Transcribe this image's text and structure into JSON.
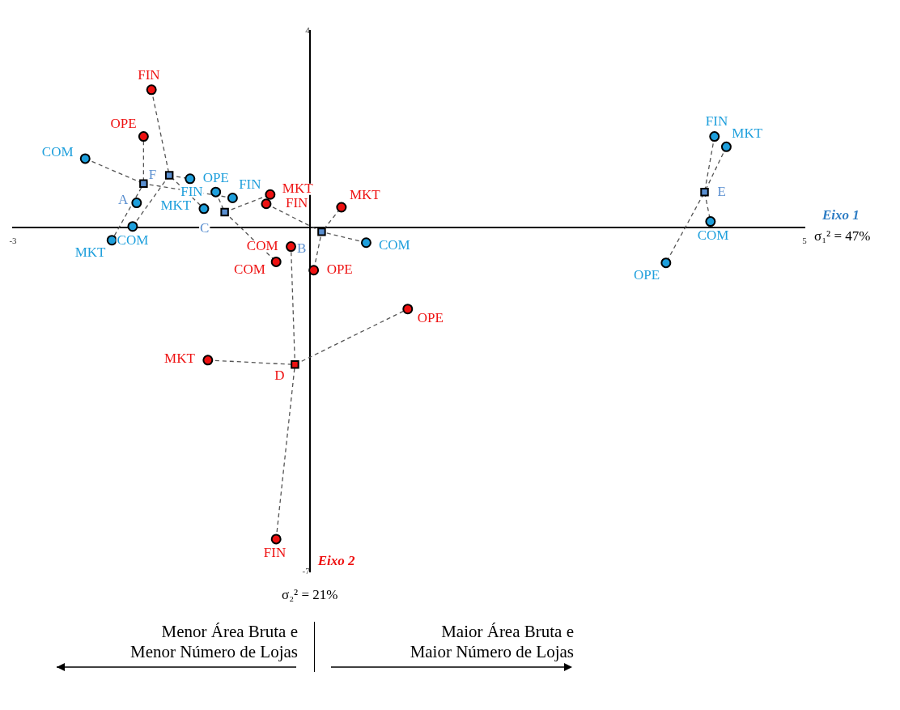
{
  "chart_data": {
    "type": "scatter",
    "xlabel": "Eixo 1",
    "ylabel": "Eixo 2",
    "xlim": [
      -3,
      5
    ],
    "xticks": [
      -3,
      5
    ],
    "ylim": [
      -7,
      4
    ],
    "yticks": [
      -7,
      4
    ],
    "grid": false,
    "legend": false,
    "annotations": [
      "σ₁² = 47%",
      "σ₂² = 21%",
      "Menor Área Bruta e\nMenor Número de Lojas",
      "Maior Área Bruta e\nMaior Número de Lojas"
    ],
    "series": [
      {
        "type": "line",
        "color": "#555555",
        "line_style": "dashed",
        "marker": "none",
        "x": [
          -2.27,
          -1.68,
          -1.68
        ],
        "values": [
          1.4,
          0.89,
          1.85
        ]
      },
      {
        "type": "line",
        "color": "#555555",
        "line_style": "dashed",
        "marker": "none",
        "x": [
          -0.78,
          -1.68,
          -2.0
        ],
        "values": [
          0.6,
          0.89,
          -0.26
        ]
      },
      {
        "type": "line",
        "color": "#555555",
        "line_style": "dashed",
        "marker": "none",
        "x": [
          -1.6,
          -1.42,
          -1.21
        ],
        "values": [
          2.8,
          1.06,
          0.99
        ]
      },
      {
        "type": "line",
        "color": "#555555",
        "line_style": "dashed",
        "marker": "none",
        "x": [
          -1.79,
          -1.42,
          -1.07
        ],
        "values": [
          0.02,
          1.06,
          0.38
        ]
      },
      {
        "type": "line",
        "color": "#555555",
        "line_style": "dashed",
        "marker": "none",
        "x": [
          -0.95,
          -0.86,
          -0.4
        ],
        "values": [
          0.72,
          0.31,
          0.67
        ]
      },
      {
        "type": "line",
        "color": "#555555",
        "line_style": "dashed",
        "marker": "none",
        "x": [
          -0.86,
          -0.34
        ],
        "values": [
          0.31,
          -0.7
        ]
      },
      {
        "type": "line",
        "color": "#555555",
        "line_style": "dashed",
        "marker": "none",
        "x": [
          -0.44,
          0.12,
          0.32
        ],
        "values": [
          0.48,
          -0.09,
          0.41
        ]
      },
      {
        "type": "line",
        "color": "#555555",
        "line_style": "dashed",
        "marker": "none",
        "x": [
          0.57,
          0.12,
          0.04
        ],
        "values": [
          -0.31,
          -0.09,
          -0.87
        ]
      },
      {
        "type": "line",
        "color": "#555555",
        "line_style": "dashed",
        "marker": "none",
        "x": [
          -1.03,
          -0.15,
          0.99
        ],
        "values": [
          -2.7,
          -2.79,
          -1.66
        ]
      },
      {
        "type": "line",
        "color": "#555555",
        "line_style": "dashed",
        "marker": "none",
        "x": [
          -0.34,
          -0.15,
          -0.19
        ],
        "values": [
          -6.34,
          -2.79,
          -0.39
        ]
      },
      {
        "type": "line",
        "color": "#555555",
        "line_style": "dashed",
        "marker": "none",
        "x": [
          4.09,
          3.99,
          3.6
        ],
        "values": [
          1.85,
          0.72,
          -0.72
        ]
      },
      {
        "type": "line",
        "color": "#555555",
        "line_style": "dashed",
        "marker": "none",
        "x": [
          4.21,
          3.99,
          4.05
        ],
        "values": [
          1.64,
          0.72,
          0.12
        ]
      },
      {
        "type": "scatter",
        "color": "#1e9fdc",
        "marker": "circle",
        "x": [
          -2.27,
          -0.78,
          -2.0,
          -1.75,
          -1.21,
          -1.79,
          -1.07,
          -0.95,
          0.57,
          4.09,
          4.21,
          4.05,
          3.6
        ],
        "values": [
          1.4,
          0.6,
          -0.26,
          0.5,
          0.99,
          0.02,
          0.38,
          0.72,
          -0.31,
          1.85,
          1.64,
          0.12,
          -0.72
        ],
        "value_labels": [
          "COM",
          "FIN",
          "MKT",
          null,
          "OPE",
          "COM",
          "MKT",
          "FIN",
          "COM",
          "FIN",
          "MKT",
          "COM",
          "OPE"
        ]
      },
      {
        "type": "scatter",
        "color": "#ee1111",
        "marker": "circle",
        "x": [
          -1.68,
          -1.6,
          -0.4,
          -0.34,
          -0.44,
          0.32,
          0.04,
          -1.03,
          0.99,
          -0.34,
          -0.19
        ],
        "values": [
          1.85,
          2.8,
          0.67,
          -0.7,
          0.48,
          0.41,
          -0.87,
          -2.7,
          -1.66,
          -6.34,
          -0.39
        ],
        "value_labels": [
          "OPE",
          "FIN",
          "MKT",
          "COM",
          "FIN",
          "MKT",
          "OPE",
          "MKT",
          "OPE",
          "FIN",
          "COM"
        ]
      },
      {
        "type": "scatter",
        "color": "#5a8fd0",
        "marker": "square",
        "x": [
          -1.68,
          0.12,
          -0.86,
          3.99,
          -1.42
        ],
        "values": [
          0.89,
          -0.09,
          0.31,
          0.72,
          1.06
        ],
        "value_labels": [
          "A",
          "B",
          "C",
          "E",
          "F"
        ]
      },
      {
        "type": "scatter",
        "color": "#ee1111",
        "marker": "square",
        "x": [
          -0.15
        ],
        "values": [
          -2.79
        ],
        "value_labels": [
          "D"
        ]
      }
    ]
  }
}
